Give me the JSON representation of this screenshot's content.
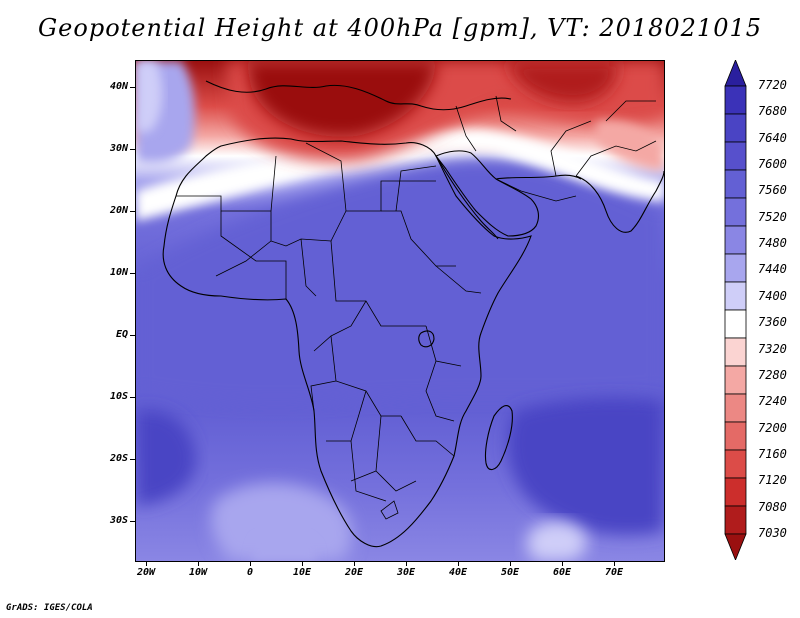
{
  "title": "Geopotential Height at 400hPa [gpm], VT: 2018021015",
  "credit": "GrADS: IGES/COLA",
  "map": {
    "lat_labels": [
      "40N",
      "30N",
      "20N",
      "10N",
      "EQ",
      "10S",
      "20S",
      "30S"
    ],
    "lon_labels": [
      "20W",
      "10W",
      "0",
      "10E",
      "20E",
      "30E",
      "40E",
      "50E",
      "60E",
      "70E"
    ],
    "lat_range": [
      -37,
      44
    ],
    "lon_range": [
      -22,
      80
    ]
  },
  "colorbar": {
    "levels": [
      "7720",
      "7680",
      "7640",
      "7600",
      "7560",
      "7520",
      "7480",
      "7440",
      "7400",
      "7360",
      "7320",
      "7280",
      "7240",
      "7200",
      "7160",
      "7120",
      "7080",
      "7030"
    ],
    "colors": [
      "#2a1f9e",
      "#3b32b8",
      "#4a44c4",
      "#5750cc",
      "#6360d4",
      "#7470dc",
      "#8a86e4",
      "#a8a6ee",
      "#cfcef8",
      "#ffffff",
      "#fbd4d2",
      "#f4a8a4",
      "#ec8884",
      "#e46a66",
      "#dc4c48",
      "#cc2e2c",
      "#b01c1c",
      "#9a1010"
    ]
  }
}
